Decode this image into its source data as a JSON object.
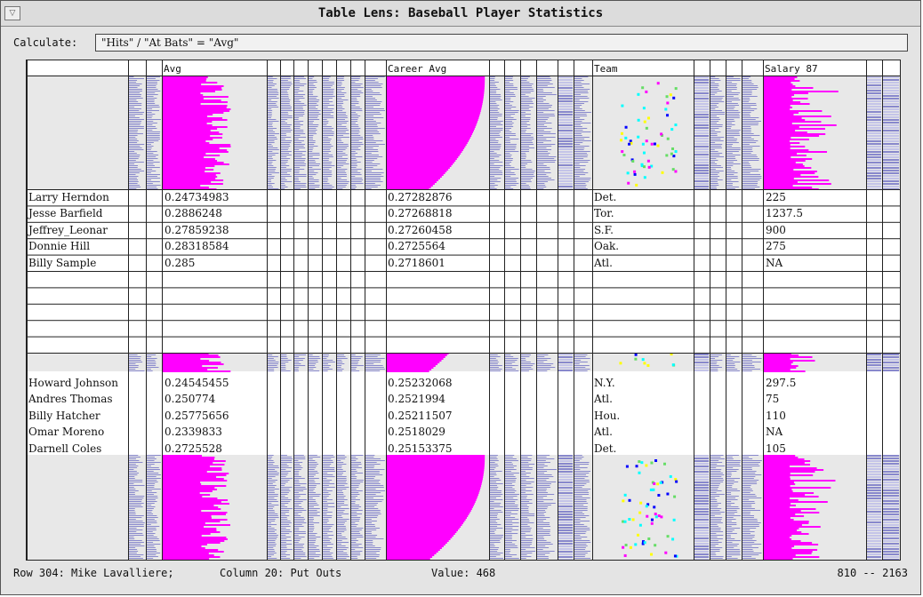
{
  "window": {
    "title": "Table Lens: Baseball Player Statistics",
    "menu_symbol": "▽"
  },
  "calculate": {
    "label": "Calculate:",
    "expression": "\"Hits\" / \"At Bats\" = \"Avg\""
  },
  "columns": {
    "avg": "Avg",
    "career_avg": "Career Avg",
    "team": "Team",
    "salary": "Salary 87"
  },
  "focus_group_1": [
    {
      "name": "Larry Herndon",
      "avg": "0.24734983",
      "career_avg": "0.27282876",
      "team": "Det.",
      "salary": "225"
    },
    {
      "name": "Jesse Barfield",
      "avg": "0.2886248",
      "career_avg": "0.27268818",
      "team": "Tor.",
      "salary": "1237.5"
    },
    {
      "name": "Jeffrey_Leonar",
      "avg": "0.27859238",
      "career_avg": "0.27260458",
      "team": "S.F.",
      "salary": "900"
    },
    {
      "name": "Donnie Hill",
      "avg": "0.28318584",
      "career_avg": "0.2725564",
      "team": "Oak.",
      "salary": "275"
    },
    {
      "name": "Billy Sample",
      "avg": "0.285",
      "career_avg": "0.2718601",
      "team": "Atl.",
      "salary": "NA"
    }
  ],
  "focus_group_2": [
    {
      "name": "Howard Johnson",
      "avg": "0.24545455",
      "career_avg": "0.25232068",
      "team": "N.Y.",
      "salary": "297.5"
    },
    {
      "name": "Andres Thomas",
      "avg": "0.250774",
      "career_avg": "0.2521994",
      "team": "Atl.",
      "salary": "75"
    },
    {
      "name": "Billy Hatcher",
      "avg": "0.25775656",
      "career_avg": "0.25211507",
      "team": "Hou.",
      "salary": "110"
    },
    {
      "name": "Omar Moreno",
      "avg": "0.2339833",
      "career_avg": "0.2518029",
      "team": "Atl.",
      "salary": "NA"
    },
    {
      "name": "Darnell Coles",
      "avg": "0.2725528",
      "career_avg": "0.25153375",
      "team": "Det.",
      "salary": "105"
    }
  ],
  "status": {
    "row": "Row 304: Mike Lavalliere;",
    "column": "Column 20: Put Outs",
    "value": "Value: 468",
    "range": "810 -- 2163"
  },
  "colors": {
    "bar_magenta": "#ff00ff",
    "bar_periwinkle": "#8888cc",
    "cell_gray": "#e8e8e8",
    "team_dots": [
      "#ff00ff",
      "#ffff00",
      "#00ffff",
      "#0000ff",
      "#66dd66"
    ]
  }
}
